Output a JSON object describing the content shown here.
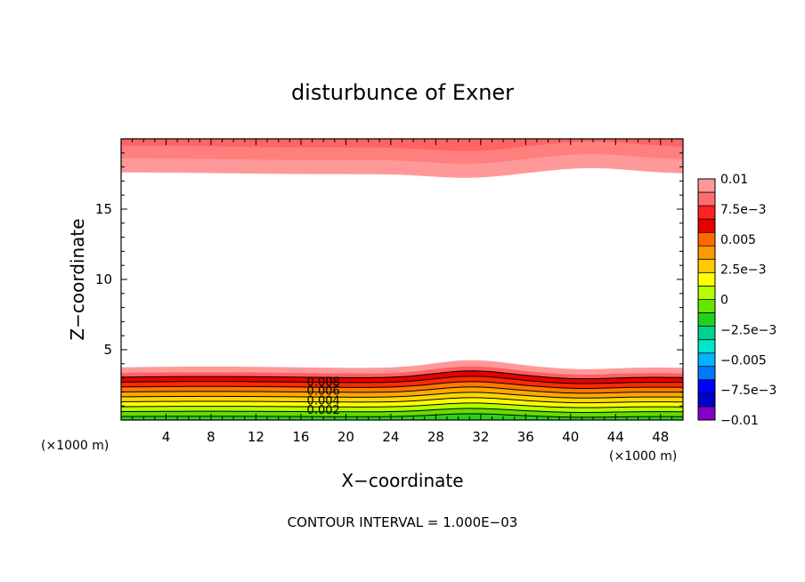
{
  "chart_data": {
    "type": "contour",
    "title": "disturbunce of Exner",
    "xlabel": "X−coordinate",
    "ylabel": "Z−coordinate",
    "x_unit": "(×1000 m)",
    "x_unit_right": "(×1000 m)",
    "xlim": [
      0,
      50
    ],
    "ylim": [
      0,
      20
    ],
    "x_ticks": [
      4,
      8,
      12,
      16,
      20,
      24,
      28,
      32,
      36,
      40,
      44,
      48
    ],
    "y_ticks": [
      5,
      10,
      15
    ],
    "contour_interval_text": "CONTOUR INTERVAL = 1.000E−03",
    "contour_labels": [
      {
        "text": "0.008",
        "value": 0.008,
        "x": 18,
        "z": 2.7
      },
      {
        "text": "0.006",
        "value": 0.006,
        "x": 18,
        "z": 2.05
      },
      {
        "text": "0.004",
        "value": 0.004,
        "x": 18,
        "z": 1.35
      },
      {
        "text": "0.002",
        "value": 0.002,
        "x": 18,
        "z": 0.7
      }
    ],
    "colorbar": {
      "labels": [
        "0.01",
        "7.5e−3",
        "0.005",
        "2.5e−3",
        "0",
        "−2.5e−3",
        "−0.005",
        "−7.5e−3",
        "−0.01"
      ],
      "colors_top_to_bottom": [
        "#ff9999",
        "#ff6e6e",
        "#ff2020",
        "#e80000",
        "#ff6a00",
        "#ff9a00",
        "#ffc800",
        "#ffff00",
        "#b4ff00",
        "#64e600",
        "#1ed21e",
        "#00d296",
        "#00e6c8",
        "#00b4ff",
        "#0078ff",
        "#0000ff",
        "#0000c8",
        "#8200c8"
      ]
    },
    "bottom_bands": [
      {
        "color": "#2bd11a",
        "top": 0.25
      },
      {
        "color": "#66dd00",
        "top": 0.6
      },
      {
        "color": "#b4ff00",
        "top": 0.95
      },
      {
        "color": "#ffff00",
        "top": 1.3
      },
      {
        "color": "#ffd700",
        "top": 1.65
      },
      {
        "color": "#ffa800",
        "top": 2.0
      },
      {
        "color": "#ff7800",
        "top": 2.35
      },
      {
        "color": "#ff2a00",
        "top": 2.7
      },
      {
        "color": "#e80000",
        "top": 3.05
      },
      {
        "color": "#ff6060",
        "top": 3.35
      },
      {
        "color": "#ff9999",
        "top": 3.75
      }
    ],
    "top_bands": [
      {
        "color": "#ff9999",
        "bottom": 17.55
      },
      {
        "color": "#ff7f7f",
        "bottom": 18.55
      },
      {
        "color": "#ff6464",
        "bottom": 19.45
      }
    ]
  }
}
